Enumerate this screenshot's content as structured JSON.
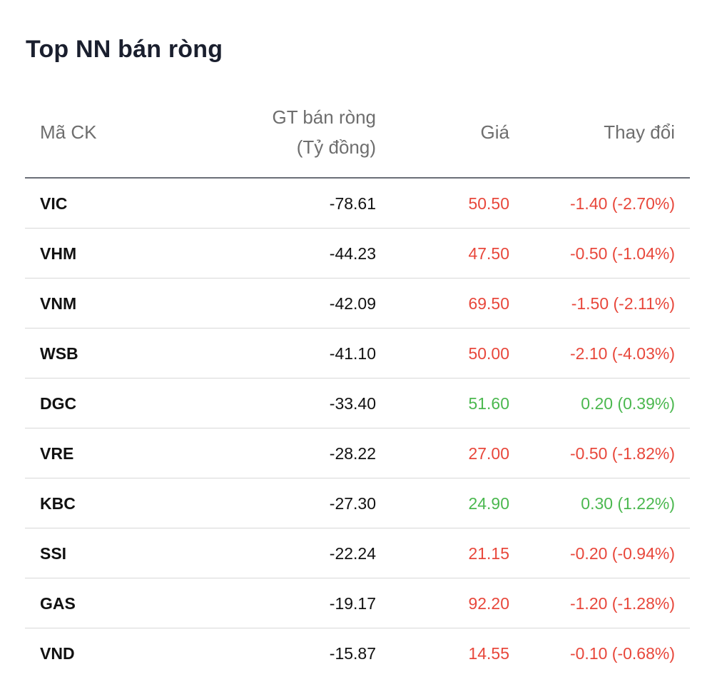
{
  "title": "Top NN bán ròng",
  "colors": {
    "down": "#e8473b",
    "up": "#4bb84f",
    "text": "#111111",
    "header": "#6e6e6e"
  },
  "headers": {
    "symbol": "Mã CK",
    "value_line1": "GT bán ròng",
    "value_line2": "(Tỷ đồng)",
    "price": "Giá",
    "change": "Thay đổi"
  },
  "rows": [
    {
      "symbol": "VIC",
      "value": "-78.61",
      "price": "50.50",
      "change": "-1.40 (-2.70%)",
      "trend": "down"
    },
    {
      "symbol": "VHM",
      "value": "-44.23",
      "price": "47.50",
      "change": "-0.50 (-1.04%)",
      "trend": "down"
    },
    {
      "symbol": "VNM",
      "value": "-42.09",
      "price": "69.50",
      "change": "-1.50 (-2.11%)",
      "trend": "down"
    },
    {
      "symbol": "WSB",
      "value": "-41.10",
      "price": "50.00",
      "change": "-2.10 (-4.03%)",
      "trend": "down"
    },
    {
      "symbol": "DGC",
      "value": "-33.40",
      "price": "51.60",
      "change": "0.20 (0.39%)",
      "trend": "up"
    },
    {
      "symbol": "VRE",
      "value": "-28.22",
      "price": "27.00",
      "change": "-0.50 (-1.82%)",
      "trend": "down"
    },
    {
      "symbol": "KBC",
      "value": "-27.30",
      "price": "24.90",
      "change": "0.30 (1.22%)",
      "trend": "up"
    },
    {
      "symbol": "SSI",
      "value": "-22.24",
      "price": "21.15",
      "change": "-0.20 (-0.94%)",
      "trend": "down"
    },
    {
      "symbol": "GAS",
      "value": "-19.17",
      "price": "92.20",
      "change": "-1.20 (-1.28%)",
      "trend": "down"
    },
    {
      "symbol": "VND",
      "value": "-15.87",
      "price": "14.55",
      "change": "-0.10 (-0.68%)",
      "trend": "down"
    }
  ]
}
